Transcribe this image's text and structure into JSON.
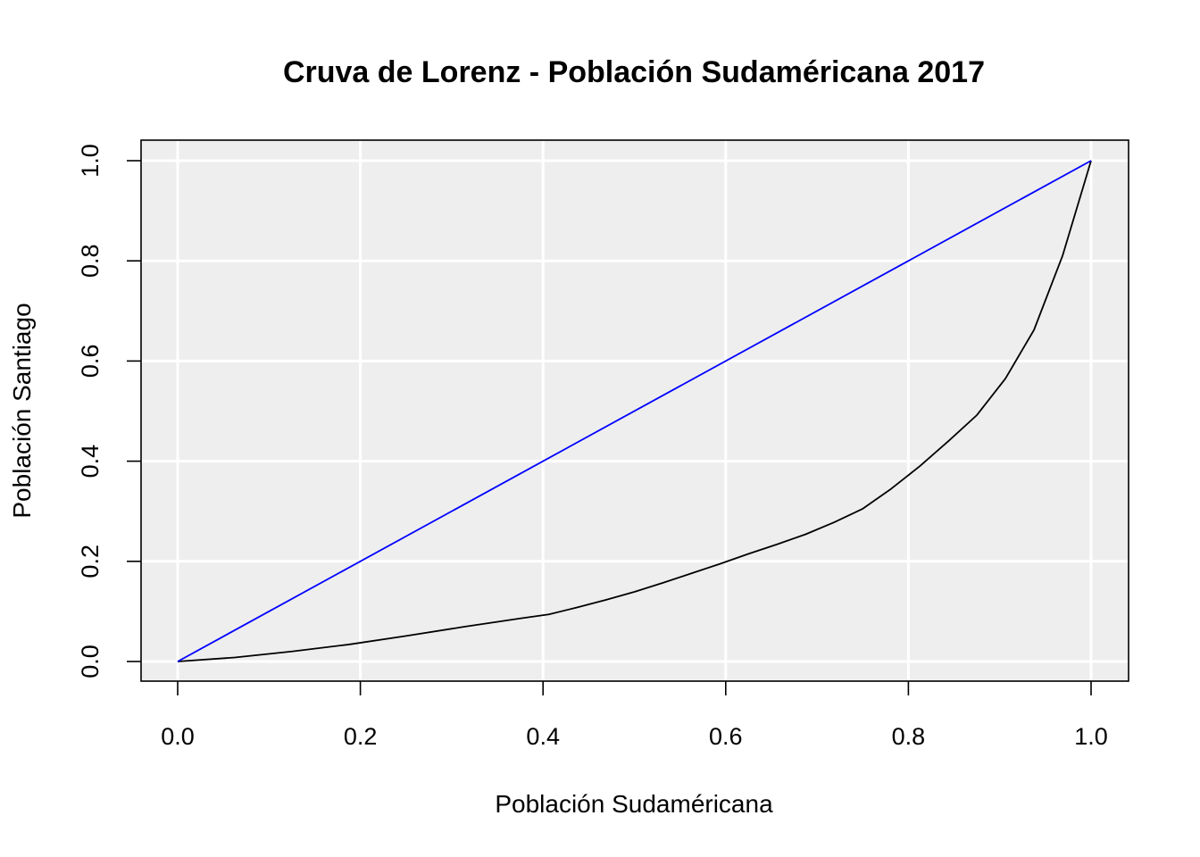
{
  "chart_data": {
    "type": "line",
    "title": "Cruva de Lorenz - Población Sudaméricana 2017",
    "xlabel": "Población Sudaméricana",
    "ylabel": "Población Santiago",
    "xlim": [
      0.0,
      1.0
    ],
    "ylim": [
      0.0,
      1.0
    ],
    "x_ticks": [
      "0.0",
      "0.2",
      "0.4",
      "0.6",
      "0.8",
      "1.0"
    ],
    "y_ticks": [
      "0.0",
      "0.2",
      "0.4",
      "0.6",
      "0.8",
      "1.0"
    ],
    "grid": true,
    "background": "#eeeeee",
    "series": [
      {
        "color": "#000000",
        "x": [
          0.0,
          0.0625,
          0.125,
          0.1875,
          0.25,
          0.3125,
          0.375,
          0.40625,
          0.4375,
          0.46875,
          0.5,
          0.53125,
          0.5625,
          0.59375,
          0.625,
          0.65625,
          0.6875,
          0.71875,
          0.75,
          0.78125,
          0.8125,
          0.84375,
          0.875,
          0.90625,
          0.9375,
          0.96875,
          1.0
        ],
        "y": [
          0.0,
          0.008,
          0.02,
          0.034,
          0.051,
          0.069,
          0.086,
          0.094,
          0.108,
          0.123,
          0.139,
          0.157,
          0.176,
          0.195,
          0.215,
          0.234,
          0.254,
          0.278,
          0.305,
          0.345,
          0.39,
          0.44,
          0.492,
          0.565,
          0.662,
          0.81,
          1.0
        ]
      },
      {
        "color": "#0000ff",
        "x": [
          0.0,
          1.0
        ],
        "y": [
          0.0,
          1.0
        ]
      }
    ]
  }
}
